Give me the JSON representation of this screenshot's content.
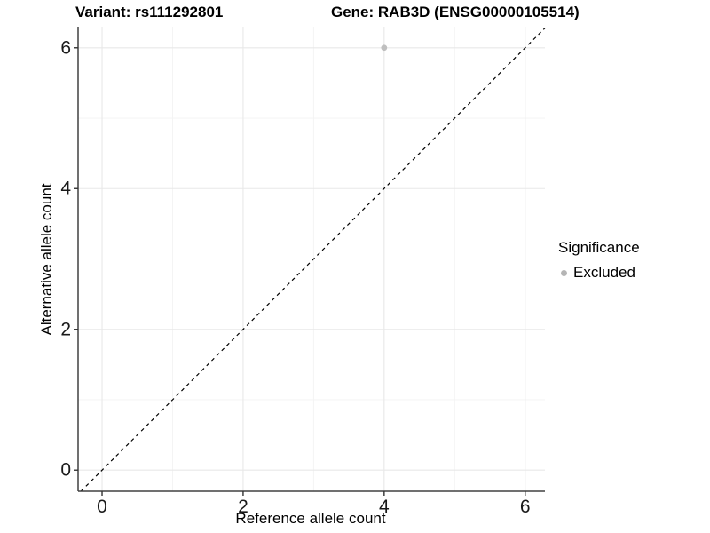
{
  "figure": {
    "title_left": "Variant: rs111292801",
    "title_right": "Gene: RAB3D (ENSG00000105514)"
  },
  "chart_data": {
    "type": "scatter",
    "xlabel": "Reference allele count",
    "ylabel": "Alternative allele count",
    "xlim": [
      -0.34,
      6.28
    ],
    "ylim": [
      -0.3,
      6.3
    ],
    "xticks": [
      0,
      2,
      4,
      6
    ],
    "yticks": [
      0,
      2,
      4,
      6
    ],
    "minor_xticks": [
      1,
      3,
      5
    ],
    "minor_yticks": [
      1,
      3,
      5
    ],
    "grid": true,
    "points": [
      {
        "x": 4,
        "y": 6,
        "series": "Excluded"
      }
    ],
    "reference_line": {
      "kind": "identity",
      "slope": 1,
      "intercept": 0,
      "style": "dashed",
      "color": "#000000"
    },
    "legend": {
      "title": "Significance",
      "position": "right",
      "items": [
        {
          "label": "Excluded",
          "marker": "circle",
          "color": "#b5b5b5"
        }
      ]
    },
    "colors": {
      "point": "#bfbfbf",
      "grid_major": "#e8e8e8",
      "grid_minor": "#f3f3f3",
      "axis_line": "#404040",
      "tick_mark": "#333333",
      "tick_label": "#1a1a1a",
      "title_text": "#000000"
    }
  }
}
